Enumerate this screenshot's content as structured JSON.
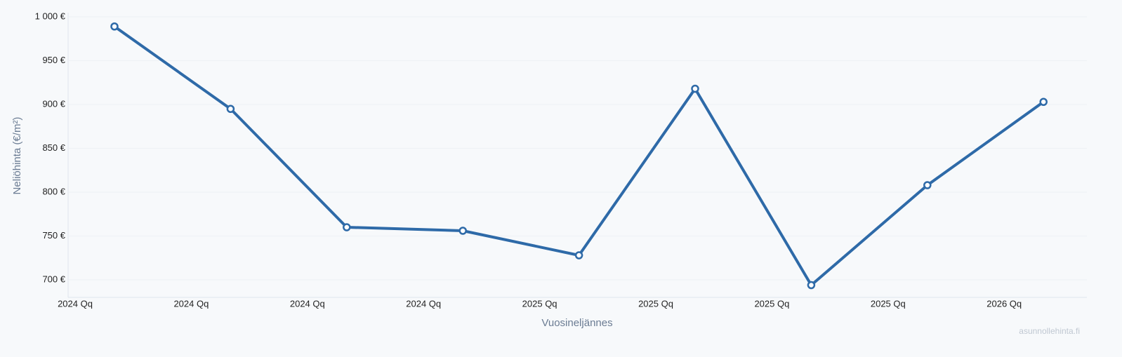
{
  "chart_data": {
    "type": "line",
    "y_label": "Neliöhinta (€/m²)",
    "x_label": "Vuosineljännes",
    "watermark": "asunnollehinta.fi",
    "categories": [
      "2024 Qq",
      "2024 Qq",
      "2024 Qq",
      "2024 Qq",
      "2025 Qq",
      "2025 Qq",
      "2025 Qq",
      "2025 Qq",
      "2026 Qq"
    ],
    "series": [
      {
        "name": "Neliöhinta",
        "color": "#2e6aa8",
        "values": [
          989,
          895,
          760,
          756,
          728,
          918,
          694,
          808,
          903
        ]
      }
    ],
    "ylim": [
      680,
      1000
    ],
    "yticks": [
      {
        "value": 700,
        "label": "700 €"
      },
      {
        "value": 750,
        "label": "750 €"
      },
      {
        "value": 800,
        "label": "800 €"
      },
      {
        "value": 850,
        "label": "850 €"
      },
      {
        "value": 900,
        "label": "900 €"
      },
      {
        "value": 950,
        "label": "950 €"
      },
      {
        "value": 1000,
        "label": "1 000 €"
      }
    ],
    "grid": true
  }
}
